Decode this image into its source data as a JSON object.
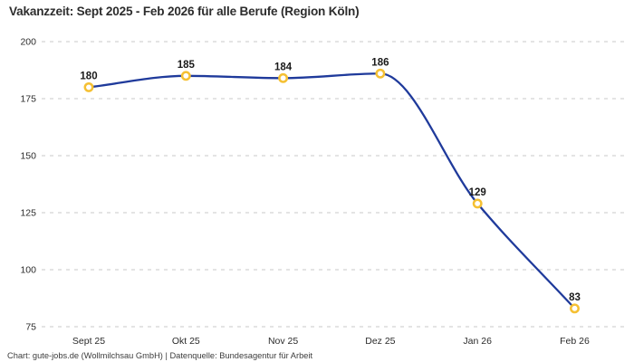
{
  "title": "Vakanzzeit: Sept 2025 - Feb 2026 für alle Berufe (Region Köln)",
  "footer": "Chart: gute-jobs.de (Wollmilchsau GmbH) | Datenquelle: Bundesagentur für Arbeit",
  "colors": {
    "background": "#ffffff",
    "line": "#1f3a9b",
    "marker_ring": "#f5c033",
    "marker_fill": "#ffffff",
    "grid": "#c9c9c9",
    "title": "#2d2d2d",
    "data_label": "#1a1a1a",
    "tick_label": "#2b2b2b",
    "footer": "#3c3c3c"
  },
  "chart_data": {
    "type": "line",
    "title": "Vakanzzeit: Sept 2025 - Feb 2026 für alle Berufe (Region Köln)",
    "categories": [
      "Sept 25",
      "Okt 25",
      "Nov 25",
      "Dez 25",
      "Jan 26",
      "Feb 26"
    ],
    "series": [
      {
        "name": "Vakanzzeit",
        "values": [
          180,
          185,
          184,
          186,
          129,
          83
        ]
      }
    ],
    "data_labels": [
      "180",
      "185",
      "184",
      "186",
      "129",
      "83"
    ],
    "xlabel": "",
    "ylabel": "",
    "ylim": [
      75,
      200
    ],
    "yticks": [
      200,
      175,
      150,
      125,
      100,
      75
    ],
    "grid": "horizontal-dashed",
    "legend": "none",
    "smooth": true
  }
}
